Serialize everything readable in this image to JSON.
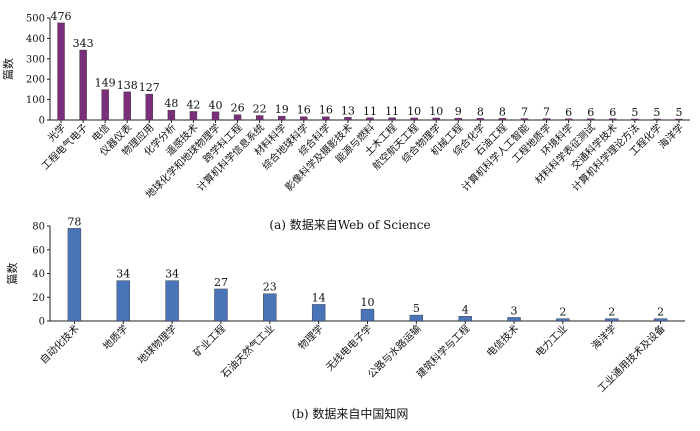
{
  "chart_data": [
    {
      "type": "bar",
      "caption": "(a) 数据来自Web of Science",
      "ylabel": "篇数",
      "xlabel": "",
      "ylim": [
        0,
        500
      ],
      "yticks": [
        0,
        100,
        200,
        300,
        400,
        500
      ],
      "color": "#7b2f7a",
      "categories": [
        "光学",
        "工程电气电子",
        "电信",
        "仪器仪表",
        "物理应用",
        "化学分析",
        "遥感技术",
        "地球化学和地球物理学",
        "跨学科工程",
        "计算机科学信息系统",
        "材料科学",
        "综合地球科学",
        "综合科学",
        "影像科学及摄影技术",
        "能源与燃料",
        "土木工程",
        "航空航天工程",
        "综合物理学",
        "机械工程",
        "综合化学",
        "石油工程",
        "计算机科学人工智能",
        "工程地质学",
        "环境科学",
        "材料科学表征测试",
        "交通科学技术",
        "计算机科学理论方法",
        "工程化学",
        "海洋学"
      ],
      "values": [
        476,
        343,
        149,
        138,
        127,
        48,
        42,
        40,
        26,
        22,
        19,
        16,
        16,
        13,
        11,
        11,
        10,
        10,
        9,
        8,
        8,
        7,
        7,
        6,
        6,
        6,
        5,
        5,
        5
      ],
      "grid": false,
      "legend": "none"
    },
    {
      "type": "bar",
      "caption": "(b) 数据来自中国知网",
      "ylabel": "篇数",
      "xlabel": "",
      "ylim": [
        0,
        80
      ],
      "yticks": [
        0,
        20,
        40,
        60,
        80
      ],
      "color": "#4a74b8",
      "categories": [
        "自动化技术",
        "地质学",
        "地球物理学",
        "矿业工程",
        "石油天然气工业",
        "物理学",
        "无线电电子学",
        "公路与水路运输",
        "建筑科学与工程",
        "电信技术",
        "电力工业",
        "海洋学",
        "工业通用技术及设备"
      ],
      "values": [
        78,
        34,
        34,
        27,
        23,
        14,
        10,
        5,
        4,
        3,
        2,
        2,
        2
      ],
      "grid": false,
      "legend": "none"
    }
  ]
}
